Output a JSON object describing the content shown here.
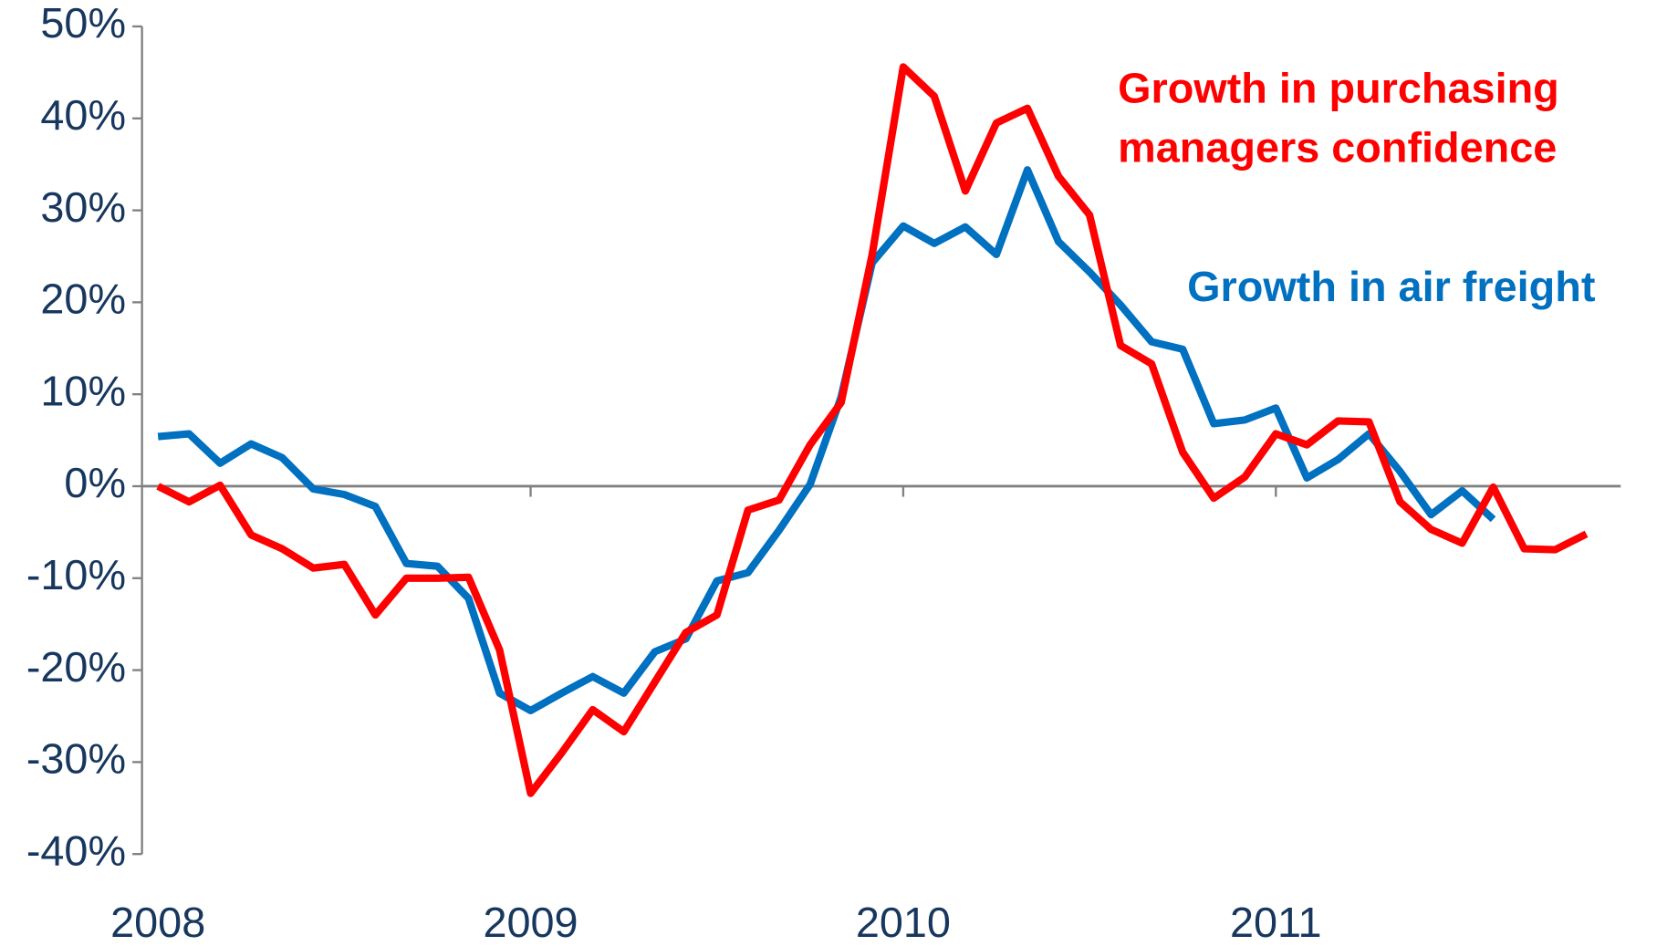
{
  "chart_data": {
    "type": "line",
    "categories": [
      "2008",
      null,
      null,
      null,
      null,
      null,
      null,
      null,
      null,
      null,
      null,
      null,
      "2009",
      null,
      null,
      null,
      null,
      null,
      null,
      null,
      null,
      null,
      null,
      null,
      "2010",
      null,
      null,
      null,
      null,
      null,
      null,
      null,
      null,
      null,
      null,
      null,
      "2011",
      null,
      null,
      null,
      null,
      null,
      null,
      null,
      null,
      null,
      null
    ],
    "series": [
      {
        "name": "Growth in purchasing managers confidence",
        "color": "#ff0000",
        "values": [
          0,
          -1.7,
          0.1,
          -5.3,
          -6.8,
          -8.9,
          -8.5,
          -14,
          -10,
          -10,
          -9.9,
          -17.8,
          -33.4,
          -29,
          -24.3,
          -26.7,
          -21.3,
          -15.9,
          -14,
          -2.6,
          -1.5,
          4.5,
          9.1,
          25.2,
          45.6,
          42.4,
          32.1,
          39.5,
          41.1,
          33.7,
          29.5,
          15.3,
          13.3,
          3.7,
          -1.3,
          1,
          5.7,
          4.5,
          7.1,
          7,
          -1.7,
          -4.7,
          -6.2,
          -0.1,
          -6.8,
          -6.9,
          -5.2
        ]
      },
      {
        "name": "Growth in air freight",
        "color": "#0070c0",
        "values": [
          5.4,
          5.7,
          2.5,
          4.6,
          3.1,
          -0.3,
          -0.9,
          -2.2,
          -8.4,
          -8.7,
          -12.2,
          -22.5,
          -24.4,
          -22.5,
          -20.7,
          -22.5,
          -18,
          -16.6,
          -10.3,
          -9.4,
          -4.8,
          0.2,
          9.7,
          24.3,
          28.3,
          26.4,
          28.2,
          25.2,
          34.4,
          26.6,
          23.3,
          19.7,
          15.7,
          14.9,
          6.8,
          7.2,
          8.5,
          0.9,
          2.9,
          5.7,
          1.6,
          -3.1,
          -0.5,
          -3.6,
          null,
          null,
          null
        ]
      }
    ],
    "ylim": [
      -40,
      50
    ],
    "yticks": [
      {
        "value": -40,
        "label": "-40%"
      },
      {
        "value": -30,
        "label": "-30%"
      },
      {
        "value": -20,
        "label": "-20%"
      },
      {
        "value": -10,
        "label": "-10%"
      },
      {
        "value": 0,
        "label": "0%"
      },
      {
        "value": 10,
        "label": "10%"
      },
      {
        "value": 20,
        "label": "20%"
      },
      {
        "value": 30,
        "label": "30%"
      },
      {
        "value": 40,
        "label": "40%"
      },
      {
        "value": 50,
        "label": "50%"
      }
    ]
  }
}
